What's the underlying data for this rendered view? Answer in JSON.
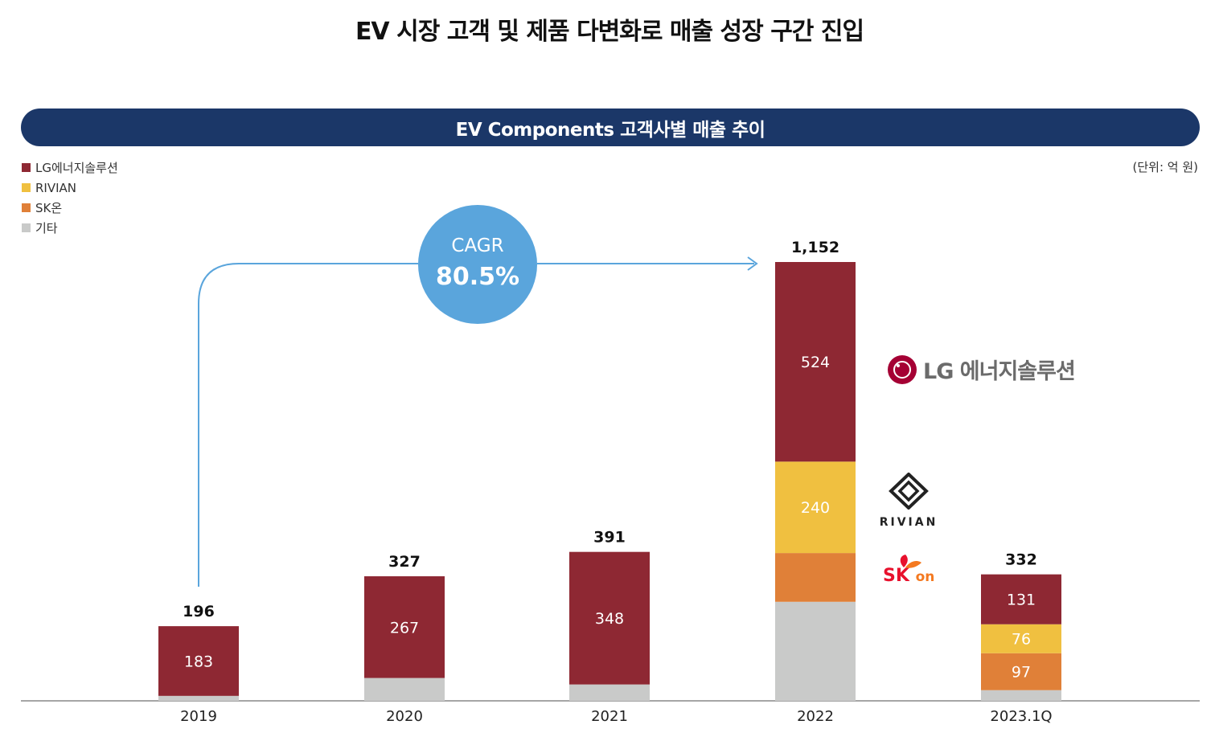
{
  "page": {
    "title": "EV 시장 고객 및 제품 다변화로 매출 성장 구간 진입",
    "banner": "EV Components 고객사별 매출 추이",
    "unit_label": "(단위: 억 원)"
  },
  "legend": [
    {
      "name": "LG에너지솔루션",
      "color": "#8e2833"
    },
    {
      "name": "RIVIAN",
      "color": "#f0c040"
    },
    {
      "name": "SK온",
      "color": "#e08038"
    },
    {
      "name": "기타",
      "color": "#c9cac9"
    }
  ],
  "cagr": {
    "label": "CAGR",
    "value": "80.5%"
  },
  "logos": {
    "lg": "LG 에너지솔루션",
    "rivian": "RIVIAN",
    "sk": "SK",
    "sk_on": "on"
  },
  "chart_data": {
    "type": "bar",
    "stacked": true,
    "categories": [
      "2019",
      "2020",
      "2021",
      "2022",
      "2023.1Q"
    ],
    "totals": [
      196,
      327,
      391,
      1152,
      332
    ],
    "total_labels": [
      "196",
      "327",
      "391",
      "1,152",
      "332"
    ],
    "series": [
      {
        "name": "LG에너지솔루션",
        "color": "#8e2833",
        "values": [
          183,
          267,
          348,
          524,
          131
        ],
        "labels": [
          "183",
          "267",
          "348",
          "524",
          "131"
        ]
      },
      {
        "name": "RIVIAN",
        "color": "#f0c040",
        "values": [
          0,
          0,
          0,
          240,
          76
        ],
        "labels": [
          "",
          "",
          "",
          "240",
          "76"
        ]
      },
      {
        "name": "SK온",
        "color": "#e08038",
        "values": [
          0,
          0,
          0,
          128,
          97
        ],
        "labels": [
          "",
          "",
          "",
          "",
          "97"
        ]
      },
      {
        "name": "기타",
        "color": "#c9cac9",
        "values": [
          13,
          60,
          43,
          260,
          28
        ],
        "labels": [
          "",
          "",
          "",
          "",
          ""
        ]
      }
    ],
    "ylim": [
      0,
      1152
    ],
    "grid": false,
    "legend_position": "top-left"
  }
}
